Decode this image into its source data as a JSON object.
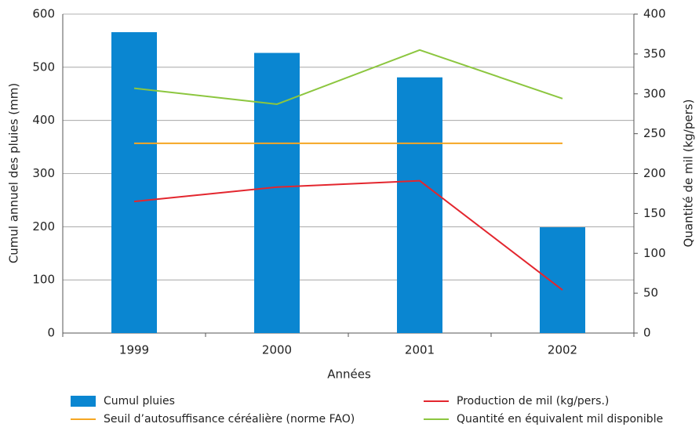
{
  "chart_data": {
    "type": "bar",
    "x_label": "Années",
    "y_label": "Cumul annuel des pluies (mm)",
    "y2_label": "Quantité de mil (kg/pers)",
    "categories": [
      "1999",
      "2000",
      "2001",
      "2002"
    ],
    "series": [
      {
        "name": "Cumul pluies",
        "type": "bar",
        "color": "#0a86d1",
        "values": [
          566,
          527,
          481,
          199
        ]
      },
      {
        "name": "Production de mil (kg/pers.)",
        "type": "line",
        "axis": "y2",
        "color": "#e3262e",
        "values": [
          165,
          183,
          191,
          54
        ]
      },
      {
        "name": "Seuil d’autosuffisance céréalière (norme FAO)",
        "type": "line",
        "axis": "y2",
        "color": "#f5a623",
        "values": [
          238,
          238,
          238,
          238
        ]
      },
      {
        "name": "Quantité en équivalent mil disponible",
        "type": "line",
        "axis": "y2",
        "color": "#8cc63f",
        "values": [
          307,
          287,
          355,
          294
        ]
      }
    ],
    "ylim": [
      0,
      600
    ],
    "yticks": [
      0,
      100,
      200,
      300,
      400,
      500,
      600
    ],
    "y2lim": [
      0,
      400
    ],
    "y2ticks": [
      0,
      50,
      100,
      150,
      200,
      250,
      300,
      350,
      400
    ],
    "grid": true
  }
}
